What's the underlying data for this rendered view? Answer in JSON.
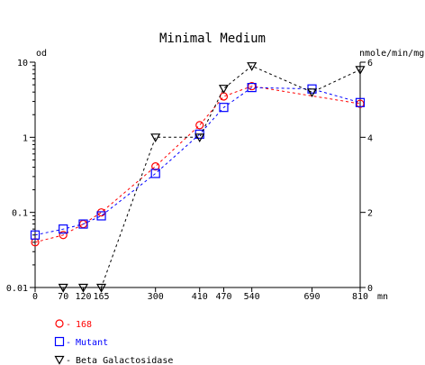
{
  "chart_data": {
    "type": "line",
    "title": "Minimal Medium",
    "ylabel_left": "od",
    "ylabel_right": "nmole/min/mg",
    "xlabel": "mn",
    "x_ticks": [
      0,
      70,
      120,
      165,
      300,
      410,
      470,
      540,
      690,
      810
    ],
    "x_tick_labels": [
      "0",
      "70",
      "120",
      "165",
      "300",
      "410",
      "470",
      "540",
      "690",
      "810"
    ],
    "xlim": [
      0,
      810
    ],
    "left_axis": {
      "scale": "log",
      "ylim": [
        0.01,
        10
      ],
      "tick_values": [
        0.01,
        0.1,
        1,
        10
      ],
      "tick_labels": [
        "0.01",
        "0.1",
        "1",
        "10"
      ]
    },
    "right_axis": {
      "scale": "linear",
      "ylim": [
        0,
        6
      ],
      "tick_values": [
        0,
        2,
        4,
        6
      ],
      "tick_labels": [
        "0",
        "2",
        "4",
        "6"
      ]
    },
    "legend_position": "bottom-left",
    "series": [
      {
        "name": "168",
        "axis": "left",
        "color": "#ff0000",
        "marker": "circle",
        "x": [
          0,
          70,
          120,
          165,
          300,
          410,
          470,
          540,
          810
        ],
        "y": [
          0.04,
          0.05,
          0.07,
          0.1,
          0.41,
          1.45,
          3.5,
          4.8,
          2.8
        ]
      },
      {
        "name": "Mutant",
        "axis": "left",
        "color": "#0000ff",
        "marker": "square",
        "x": [
          0,
          70,
          120,
          165,
          300,
          410,
          470,
          540,
          690,
          810
        ],
        "y": [
          0.05,
          0.06,
          0.07,
          0.09,
          0.33,
          1.1,
          2.5,
          4.6,
          4.4,
          2.9
        ]
      },
      {
        "name": "Beta Galactosidase",
        "axis": "right",
        "color": "#000000",
        "marker": "triangle-down",
        "x": [
          70,
          120,
          165,
          300,
          410,
          470,
          540,
          690,
          810
        ],
        "y": [
          0,
          0,
          0,
          4,
          4,
          5.3,
          5.9,
          5.2,
          5.8
        ]
      }
    ]
  }
}
